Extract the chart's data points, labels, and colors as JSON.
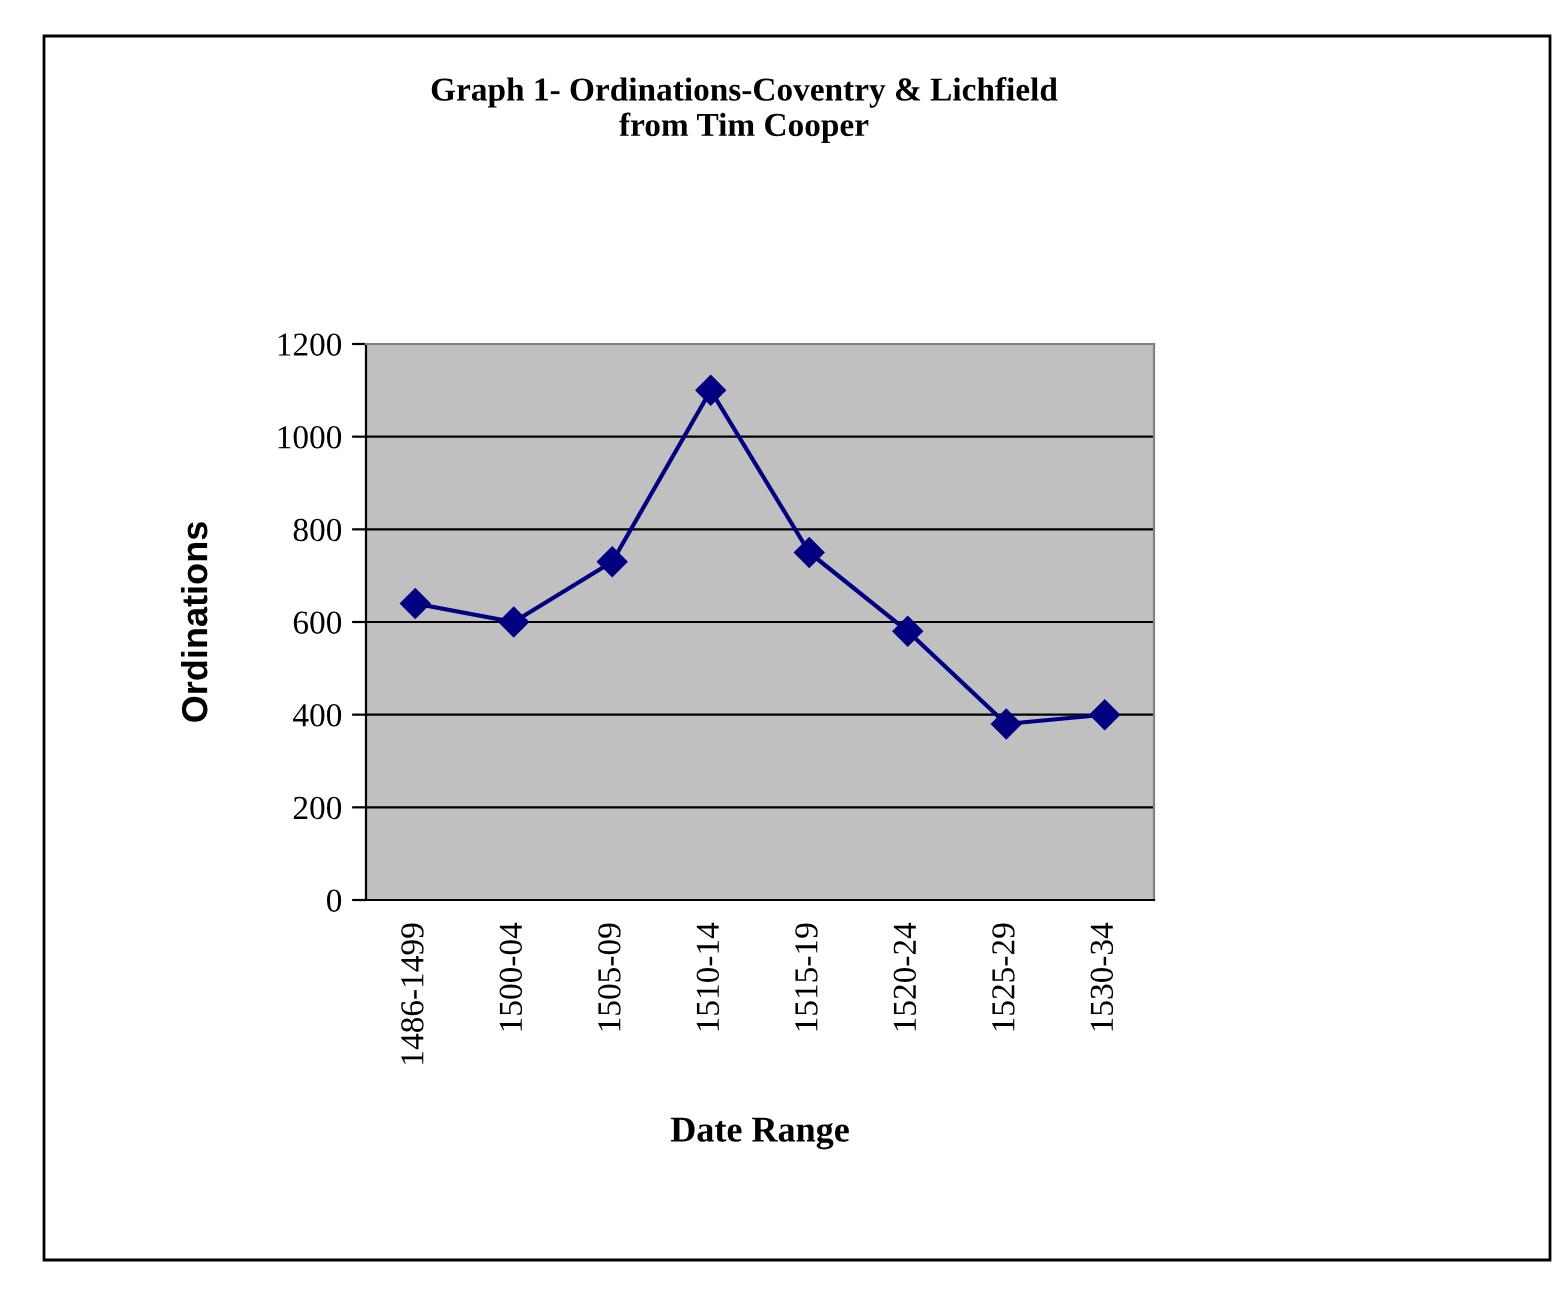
{
  "chart_data": {
    "type": "line",
    "title": "Graph 1- Ordinations-Coventry & Lichfield\nfrom Tim Cooper",
    "xlabel": "Date Range",
    "ylabel": "Ordinations",
    "categories": [
      "1486-1499",
      "1500-04",
      "1505-09",
      "1510-14",
      "1515-19",
      "1520-24",
      "1525-29",
      "1530-34"
    ],
    "series": [
      {
        "color": "#000080",
        "values": [
          640,
          600,
          730,
          1100,
          750,
          580,
          380,
          400
        ]
      }
    ],
    "ylim": [
      0,
      1200
    ],
    "yticks": [
      0,
      200,
      400,
      600,
      800,
      1000,
      1200
    ],
    "grid": "y",
    "marker": "diamond",
    "line_style": "solid",
    "legend": false
  }
}
